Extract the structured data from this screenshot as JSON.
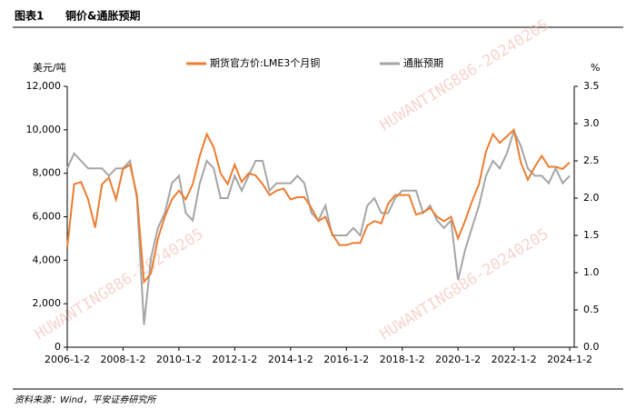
{
  "chart_data": {
    "type": "line",
    "title_label": "图表1",
    "title": "铜价&通胀预期",
    "y_label": "美元/吨",
    "y2_label": "%",
    "source": "资料来源：Wind，平安证券研究所",
    "watermark": "HUWANTING886-20240205",
    "x": [
      "2006-1-2",
      "2006-4-2",
      "2006-7-2",
      "2006-10-2",
      "2007-1-2",
      "2007-4-2",
      "2007-7-2",
      "2007-10-2",
      "2008-1-2",
      "2008-4-2",
      "2008-7-2",
      "2008-10-2",
      "2009-1-2",
      "2009-4-2",
      "2009-7-2",
      "2009-10-2",
      "2010-1-2",
      "2010-4-2",
      "2010-7-2",
      "2010-10-2",
      "2011-1-2",
      "2011-4-2",
      "2011-7-2",
      "2011-10-2",
      "2012-1-2",
      "2012-4-2",
      "2012-7-2",
      "2012-10-2",
      "2013-1-2",
      "2013-4-2",
      "2013-7-2",
      "2013-10-2",
      "2014-1-2",
      "2014-4-2",
      "2014-7-2",
      "2014-10-2",
      "2015-1-2",
      "2015-4-2",
      "2015-7-2",
      "2015-10-2",
      "2016-1-2",
      "2016-4-2",
      "2016-7-2",
      "2016-10-2",
      "2017-1-2",
      "2017-4-2",
      "2017-7-2",
      "2017-10-2",
      "2018-1-2",
      "2018-4-2",
      "2018-7-2",
      "2018-10-2",
      "2019-1-2",
      "2019-4-2",
      "2019-7-2",
      "2019-10-2",
      "2020-1-2",
      "2020-4-2",
      "2020-7-2",
      "2020-10-2",
      "2021-1-2",
      "2021-4-2",
      "2021-7-2",
      "2021-10-2",
      "2022-1-2",
      "2022-4-2",
      "2022-7-2",
      "2022-10-2",
      "2023-1-2",
      "2023-4-2",
      "2023-7-2",
      "2023-10-2",
      "2024-1-2"
    ],
    "series": [
      {
        "name": "期货官方价:LME3个月铜",
        "color": "#ed7d31",
        "axis": "y",
        "values": [
          4600,
          7500,
          7600,
          6800,
          5500,
          7500,
          7800,
          6800,
          8200,
          8400,
          7000,
          3000,
          3400,
          5000,
          6000,
          6800,
          7200,
          6800,
          7500,
          8800,
          9800,
          9200,
          8000,
          7500,
          8400,
          7600,
          8000,
          7900,
          7500,
          7000,
          7200,
          7300,
          6800,
          6900,
          6900,
          6400,
          5800,
          6000,
          5200,
          4700,
          4700,
          4800,
          4800,
          5600,
          5800,
          5700,
          6600,
          7000,
          7000,
          7000,
          6100,
          6200,
          6400,
          6000,
          5800,
          6000,
          5000,
          5800,
          6700,
          7500,
          9000,
          9800,
          9400,
          9700,
          10000,
          8500,
          7700,
          8300,
          8800,
          8300,
          8300,
          8200,
          8500
        ]
      },
      {
        "name": "通胀预期",
        "color": "#a5a5a5",
        "axis": "y2",
        "values": [
          2.4,
          2.6,
          2.5,
          2.4,
          2.4,
          2.4,
          2.3,
          2.4,
          2.4,
          2.5,
          2.0,
          0.3,
          1.2,
          1.6,
          1.8,
          2.2,
          2.3,
          1.8,
          1.7,
          2.2,
          2.5,
          2.4,
          2.0,
          2.0,
          2.3,
          2.1,
          2.3,
          2.5,
          2.5,
          2.1,
          2.2,
          2.2,
          2.2,
          2.3,
          2.2,
          1.8,
          1.7,
          1.9,
          1.5,
          1.5,
          1.5,
          1.6,
          1.5,
          1.9,
          2.0,
          1.8,
          1.8,
          2.0,
          2.1,
          2.1,
          2.1,
          1.8,
          1.9,
          1.7,
          1.6,
          1.7,
          0.9,
          1.3,
          1.6,
          1.9,
          2.3,
          2.5,
          2.4,
          2.6,
          2.9,
          2.7,
          2.4,
          2.3,
          2.3,
          2.2,
          2.4,
          2.2,
          2.3
        ]
      }
    ],
    "xlim": [
      "2006-1-2",
      "2024-3-1"
    ],
    "xticks": [
      "2006-1-2",
      "2008-1-2",
      "2010-1-2",
      "2012-1-2",
      "2014-1-2",
      "2016-1-2",
      "2018-1-2",
      "2020-1-2",
      "2022-1-2",
      "2024-1-2"
    ],
    "ylim": [
      0,
      12000
    ],
    "yticks": [
      0,
      {
        "value": 2000,
        "label": "2,000"
      },
      {
        "value": 4000,
        "label": "4,000"
      },
      {
        "value": 6000,
        "label": "6,000"
      },
      {
        "value": 8000,
        "label": "8,000"
      },
      {
        "value": 10000,
        "label": "10,000"
      },
      {
        "value": 12000,
        "label": "12,000"
      }
    ],
    "y2lim": [
      0,
      3.5
    ],
    "y2ticks": [
      {
        "value": 0,
        "label": "0.0"
      },
      0.5,
      {
        "value": 1,
        "label": "1.0"
      },
      1.5,
      {
        "value": 2,
        "label": "2.0"
      },
      2.5,
      {
        "value": 3,
        "label": "3.0"
      },
      3.5
    ],
    "grid": false,
    "legend": "top"
  }
}
